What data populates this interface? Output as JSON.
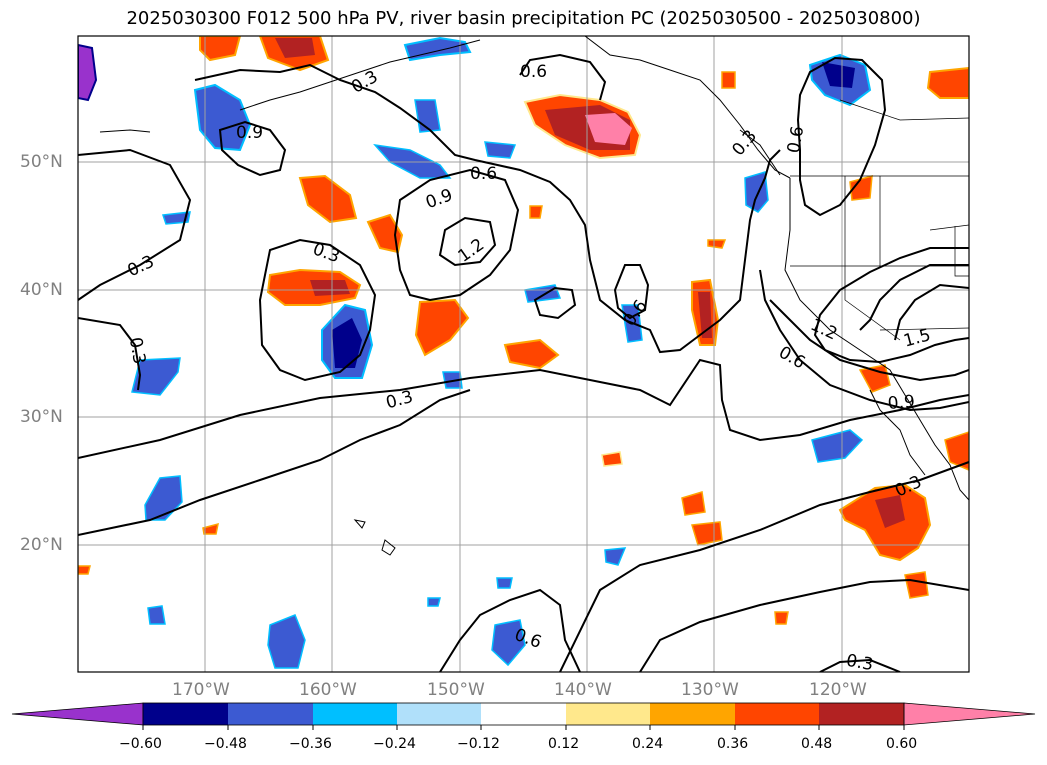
{
  "title": "2025030300 F012 500 hPa PV, river basin precipitation PC (2025030500 - 2025030800)",
  "lat_labels": [
    "50°N",
    "40°N",
    "30°N",
    "20°N"
  ],
  "lon_labels": [
    "170°W",
    "160°W",
    "150°W",
    "140°W",
    "130°W",
    "120°W"
  ],
  "contour_labels": [
    "0.6",
    "0.3",
    "0.9",
    "0.6",
    "0.9",
    "1.2",
    "0.3",
    "0.3",
    "0.3",
    "0.6",
    "0.3",
    "0.6",
    "1.2",
    "0.6",
    "1.5",
    "0.9",
    "0.3",
    "0.3",
    "0.6",
    "0.3"
  ],
  "colorbar": {
    "ticks": [
      "−0.60",
      "−0.48",
      "−0.36",
      "−0.24",
      "−0.12",
      "0.12",
      "0.24",
      "0.36",
      "0.48",
      "0.60"
    ],
    "colors": [
      "#9932cc",
      "#00008b",
      "#3c5ad2",
      "#00bfff",
      "#b0e0fa",
      "#ffffff",
      "#ffe88c",
      "#ffa500",
      "#ff4500",
      "#b22222",
      "#ff80a8"
    ]
  },
  "colors": {
    "contour": "#000000",
    "grid": "#a0a0a0",
    "coast": "#000000"
  }
}
